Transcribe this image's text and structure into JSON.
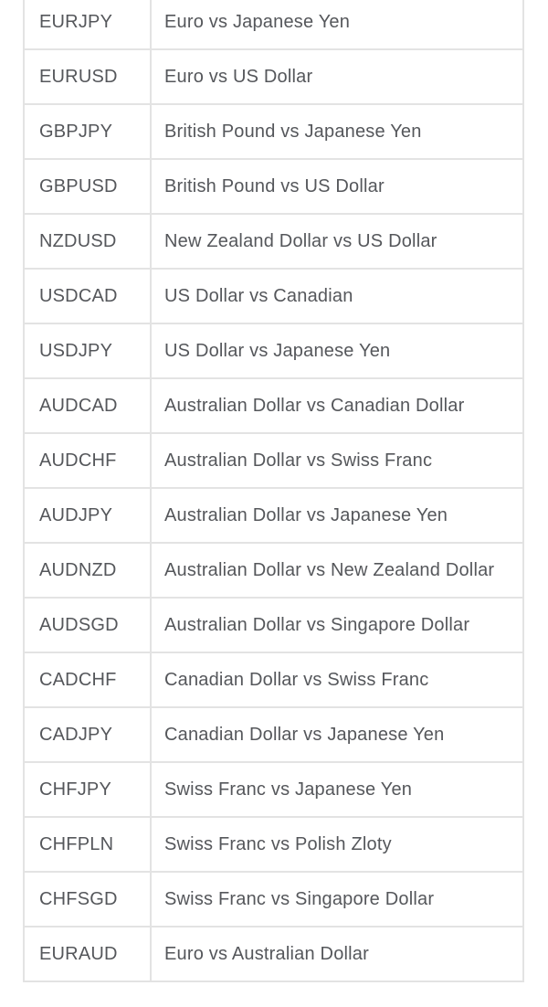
{
  "colors": {
    "background": "#ffffff",
    "border": "#e3e3e3",
    "text": "#55575b"
  },
  "table": {
    "name": "currency-pairs-table",
    "columns": [
      "symbol",
      "description"
    ],
    "rows": [
      {
        "symbol": "EURJPY",
        "description": "Euro vs Japanese Yen"
      },
      {
        "symbol": "EURUSD",
        "description": "Euro vs US Dollar"
      },
      {
        "symbol": "GBPJPY",
        "description": "British Pound vs Japanese Yen"
      },
      {
        "symbol": "GBPUSD",
        "description": "British Pound vs US Dollar"
      },
      {
        "symbol": "NZDUSD",
        "description": "New Zealand Dollar vs US Dollar"
      },
      {
        "symbol": "USDCAD",
        "description": "US Dollar vs Canadian"
      },
      {
        "symbol": "USDJPY",
        "description": "US Dollar vs Japanese Yen"
      },
      {
        "symbol": "AUDCAD",
        "description": "Australian Dollar vs Canadian Dollar"
      },
      {
        "symbol": "AUDCHF",
        "description": "Australian Dollar vs Swiss Franc"
      },
      {
        "symbol": "AUDJPY",
        "description": "Australian Dollar vs Japanese Yen"
      },
      {
        "symbol": "AUDNZD",
        "description": "Australian Dollar vs New Zealand Dollar"
      },
      {
        "symbol": "AUDSGD",
        "description": "Australian Dollar vs Singapore Dollar"
      },
      {
        "symbol": "CADCHF",
        "description": "Canadian Dollar vs Swiss Franc"
      },
      {
        "symbol": "CADJPY",
        "description": "Canadian Dollar vs Japanese Yen"
      },
      {
        "symbol": "CHFJPY",
        "description": "Swiss Franc vs Japanese Yen"
      },
      {
        "symbol": "CHFPLN",
        "description": "Swiss Franc vs Polish Zloty"
      },
      {
        "symbol": "CHFSGD",
        "description": "Swiss Franc vs Singapore Dollar"
      },
      {
        "symbol": "EURAUD",
        "description": "Euro vs Australian Dollar"
      }
    ]
  }
}
